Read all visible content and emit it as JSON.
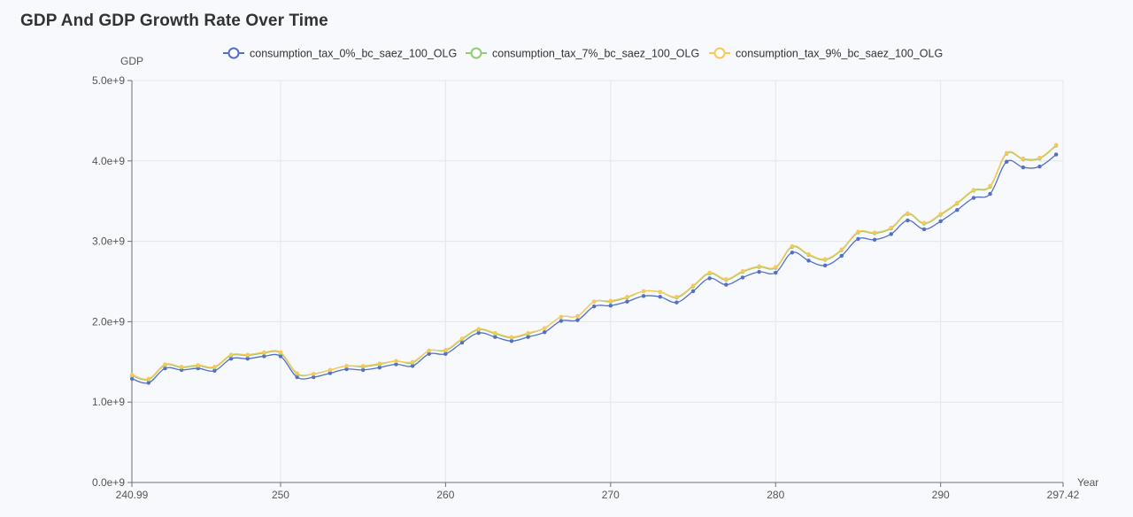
{
  "title": "GDP And GDP Growth Rate Over Time",
  "chart_data": {
    "type": "line",
    "title": "GDP And GDP Growth Rate Over Time",
    "xlabel": "Year",
    "ylabel": "GDP",
    "xlim": [
      240.99,
      297.42
    ],
    "ylim": [
      0,
      5000000000
    ],
    "x_ticks": [
      {
        "value": 240.99,
        "label": "240.99"
      },
      {
        "value": 250,
        "label": "250"
      },
      {
        "value": 260,
        "label": "260"
      },
      {
        "value": 270,
        "label": "270"
      },
      {
        "value": 280,
        "label": "280"
      },
      {
        "value": 290,
        "label": "290"
      },
      {
        "value": 297.42,
        "label": "297.42"
      }
    ],
    "y_ticks": [
      {
        "value": 0,
        "label": "0.0e+9"
      },
      {
        "value": 1000000000,
        "label": "1.0e+9"
      },
      {
        "value": 2000000000,
        "label": "2.0e+9"
      },
      {
        "value": 3000000000,
        "label": "3.0e+9"
      },
      {
        "value": 4000000000,
        "label": "4.0e+9"
      },
      {
        "value": 5000000000,
        "label": "5.0e+9"
      }
    ],
    "grid": true,
    "legend_position": "top-center",
    "x": [
      241,
      242,
      243,
      244,
      245,
      246,
      247,
      248,
      249,
      250,
      251,
      252,
      253,
      254,
      255,
      256,
      257,
      258,
      259,
      260,
      261,
      262,
      263,
      264,
      265,
      266,
      267,
      268,
      269,
      270,
      271,
      272,
      273,
      274,
      275,
      276,
      277,
      278,
      279,
      280,
      281,
      282,
      283,
      284,
      285,
      286,
      287,
      288,
      289,
      290,
      291,
      292,
      293,
      294,
      295,
      296,
      297
    ],
    "series": [
      {
        "name": "consumption_tax_0%_bc_saez_100_OLG",
        "color": "#5470c6",
        "values": [
          1290000000.0,
          1240000000.0,
          1420000000.0,
          1400000000.0,
          1420000000.0,
          1390000000.0,
          1540000000.0,
          1540000000.0,
          1570000000.0,
          1570000000.0,
          1310000000.0,
          1310000000.0,
          1360000000.0,
          1410000000.0,
          1400000000.0,
          1430000000.0,
          1470000000.0,
          1450000000.0,
          1600000000.0,
          1600000000.0,
          1740000000.0,
          1860000000.0,
          1810000000.0,
          1760000000.0,
          1810000000.0,
          1870000000.0,
          2010000000.0,
          2020000000.0,
          2190000000.0,
          2200000000.0,
          2250000000.0,
          2320000000.0,
          2310000000.0,
          2240000000.0,
          2380000000.0,
          2540000000.0,
          2460000000.0,
          2550000000.0,
          2620000000.0,
          2610000000.0,
          2860000000.0,
          2760000000.0,
          2700000000.0,
          2820000000.0,
          3030000000.0,
          3020000000.0,
          3090000000.0,
          3260000000.0,
          3150000000.0,
          3250000000.0,
          3390000000.0,
          3540000000.0,
          3590000000.0,
          3990000000.0,
          3920000000.0,
          3930000000.0,
          4080000000.0
        ]
      },
      {
        "name": "consumption_tax_7%_bc_saez_100_OLG",
        "color": "#91cc75",
        "values": [
          1330000000.0,
          1280000000.0,
          1460000000.0,
          1430000000.0,
          1450000000.0,
          1430000000.0,
          1580000000.0,
          1580000000.0,
          1610000000.0,
          1610000000.0,
          1350000000.0,
          1350000000.0,
          1400000000.0,
          1450000000.0,
          1440000000.0,
          1470000000.0,
          1510000000.0,
          1490000000.0,
          1640000000.0,
          1640000000.0,
          1780000000.0,
          1900000000.0,
          1850000000.0,
          1800000000.0,
          1850000000.0,
          1920000000.0,
          2060000000.0,
          2070000000.0,
          2250000000.0,
          2250000000.0,
          2300000000.0,
          2380000000.0,
          2370000000.0,
          2300000000.0,
          2440000000.0,
          2600000000.0,
          2520000000.0,
          2620000000.0,
          2680000000.0,
          2670000000.0,
          2930000000.0,
          2830000000.0,
          2770000000.0,
          2890000000.0,
          3110000000.0,
          3100000000.0,
          3160000000.0,
          3340000000.0,
          3220000000.0,
          3330000000.0,
          3470000000.0,
          3630000000.0,
          3680000000.0,
          4090000000.0,
          4020000000.0,
          4030000000.0,
          4190000000.0
        ]
      },
      {
        "name": "consumption_tax_9%_bc_saez_100_OLG",
        "color": "#fac858",
        "values": [
          1340000000.0,
          1290000000.0,
          1470000000.0,
          1440000000.0,
          1460000000.0,
          1440000000.0,
          1590000000.0,
          1590000000.0,
          1620000000.0,
          1620000000.0,
          1360000000.0,
          1350000000.0,
          1400000000.0,
          1450000000.0,
          1450000000.0,
          1480000000.0,
          1510000000.0,
          1500000000.0,
          1640000000.0,
          1650000000.0,
          1790000000.0,
          1910000000.0,
          1860000000.0,
          1810000000.0,
          1860000000.0,
          1920000000.0,
          2060000000.0,
          2070000000.0,
          2250000000.0,
          2260000000.0,
          2310000000.0,
          2380000000.0,
          2370000000.0,
          2310000000.0,
          2450000000.0,
          2610000000.0,
          2530000000.0,
          2630000000.0,
          2690000000.0,
          2680000000.0,
          2940000000.0,
          2840000000.0,
          2780000000.0,
          2900000000.0,
          3120000000.0,
          3110000000.0,
          3170000000.0,
          3350000000.0,
          3230000000.0,
          3340000000.0,
          3480000000.0,
          3640000000.0,
          3690000000.0,
          4100000000.0,
          4030000000.0,
          4040000000.0,
          4200000000.0
        ]
      }
    ]
  }
}
